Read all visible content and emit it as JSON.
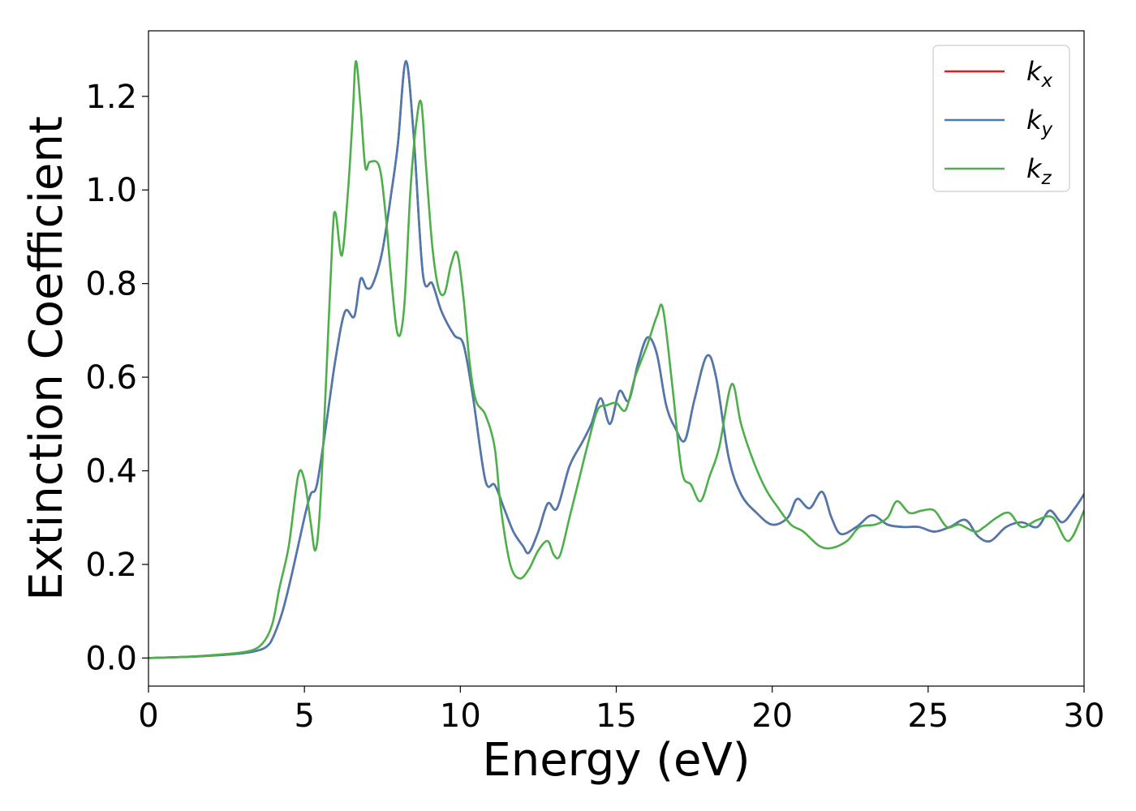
{
  "chart_data": {
    "type": "line",
    "title": "",
    "xlabel": "Energy (eV)",
    "ylabel": "Extinction Coefficient",
    "xlim": [
      0,
      30
    ],
    "ylim": [
      -0.06,
      1.34
    ],
    "xticks": [
      0,
      5,
      10,
      15,
      20,
      25,
      30
    ],
    "yticks": [
      0.0,
      0.2,
      0.4,
      0.6,
      0.8,
      1.0,
      1.2
    ],
    "grid": false,
    "legend_position": "top-right",
    "series": [
      {
        "name": "k",
        "subscript": "x",
        "color": "#e41a1c",
        "points": [
          [
            0,
            0
          ],
          [
            1,
            0.002
          ],
          [
            2,
            0.005
          ],
          [
            3,
            0.01
          ],
          [
            3.5,
            0.016
          ],
          [
            3.8,
            0.025
          ],
          [
            4.0,
            0.045
          ],
          [
            4.3,
            0.1
          ],
          [
            4.6,
            0.18
          ],
          [
            5.0,
            0.3
          ],
          [
            5.2,
            0.35
          ],
          [
            5.4,
            0.37
          ],
          [
            5.7,
            0.5
          ],
          [
            6.0,
            0.64
          ],
          [
            6.3,
            0.74
          ],
          [
            6.6,
            0.73
          ],
          [
            6.8,
            0.81
          ],
          [
            7.0,
            0.79
          ],
          [
            7.2,
            0.8
          ],
          [
            7.5,
            0.87
          ],
          [
            7.8,
            1.0
          ],
          [
            8.0,
            1.1
          ],
          [
            8.25,
            1.275
          ],
          [
            8.5,
            1.12
          ],
          [
            8.8,
            0.82
          ],
          [
            9.1,
            0.8
          ],
          [
            9.4,
            0.74
          ],
          [
            9.8,
            0.69
          ],
          [
            10.1,
            0.67
          ],
          [
            10.4,
            0.56
          ],
          [
            10.8,
            0.38
          ],
          [
            11.1,
            0.37
          ],
          [
            11.4,
            0.32
          ],
          [
            11.7,
            0.27
          ],
          [
            12.0,
            0.24
          ],
          [
            12.2,
            0.225
          ],
          [
            12.5,
            0.27
          ],
          [
            12.8,
            0.33
          ],
          [
            13.1,
            0.32
          ],
          [
            13.5,
            0.41
          ],
          [
            13.9,
            0.46
          ],
          [
            14.2,
            0.5
          ],
          [
            14.5,
            0.555
          ],
          [
            14.8,
            0.5
          ],
          [
            15.1,
            0.57
          ],
          [
            15.4,
            0.55
          ],
          [
            15.7,
            0.63
          ],
          [
            16.0,
            0.685
          ],
          [
            16.3,
            0.65
          ],
          [
            16.6,
            0.54
          ],
          [
            16.9,
            0.49
          ],
          [
            17.2,
            0.465
          ],
          [
            17.5,
            0.55
          ],
          [
            17.9,
            0.645
          ],
          [
            18.2,
            0.6
          ],
          [
            18.6,
            0.43
          ],
          [
            19.0,
            0.35
          ],
          [
            19.5,
            0.31
          ],
          [
            20.0,
            0.285
          ],
          [
            20.5,
            0.3
          ],
          [
            20.8,
            0.34
          ],
          [
            21.2,
            0.32
          ],
          [
            21.6,
            0.355
          ],
          [
            21.9,
            0.3
          ],
          [
            22.2,
            0.265
          ],
          [
            22.7,
            0.28
          ],
          [
            23.2,
            0.305
          ],
          [
            23.7,
            0.285
          ],
          [
            24.2,
            0.28
          ],
          [
            24.7,
            0.28
          ],
          [
            25.2,
            0.27
          ],
          [
            25.7,
            0.28
          ],
          [
            26.2,
            0.295
          ],
          [
            26.6,
            0.26
          ],
          [
            27.0,
            0.25
          ],
          [
            27.5,
            0.28
          ],
          [
            28.0,
            0.29
          ],
          [
            28.5,
            0.28
          ],
          [
            28.9,
            0.315
          ],
          [
            29.3,
            0.29
          ],
          [
            29.7,
            0.32
          ],
          [
            30.0,
            0.35
          ]
        ]
      },
      {
        "name": "k",
        "subscript": "y",
        "color": "#4a7ab0",
        "points": [
          [
            0,
            0
          ],
          [
            1,
            0.002
          ],
          [
            2,
            0.005
          ],
          [
            3,
            0.01
          ],
          [
            3.5,
            0.016
          ],
          [
            3.8,
            0.025
          ],
          [
            4.0,
            0.045
          ],
          [
            4.3,
            0.1
          ],
          [
            4.6,
            0.18
          ],
          [
            5.0,
            0.3
          ],
          [
            5.2,
            0.35
          ],
          [
            5.4,
            0.37
          ],
          [
            5.7,
            0.5
          ],
          [
            6.0,
            0.64
          ],
          [
            6.3,
            0.74
          ],
          [
            6.6,
            0.73
          ],
          [
            6.8,
            0.81
          ],
          [
            7.0,
            0.79
          ],
          [
            7.2,
            0.8
          ],
          [
            7.5,
            0.87
          ],
          [
            7.8,
            1.0
          ],
          [
            8.0,
            1.1
          ],
          [
            8.25,
            1.275
          ],
          [
            8.5,
            1.12
          ],
          [
            8.8,
            0.82
          ],
          [
            9.1,
            0.8
          ],
          [
            9.4,
            0.74
          ],
          [
            9.8,
            0.69
          ],
          [
            10.1,
            0.67
          ],
          [
            10.4,
            0.56
          ],
          [
            10.8,
            0.38
          ],
          [
            11.1,
            0.37
          ],
          [
            11.4,
            0.32
          ],
          [
            11.7,
            0.27
          ],
          [
            12.0,
            0.24
          ],
          [
            12.2,
            0.225
          ],
          [
            12.5,
            0.27
          ],
          [
            12.8,
            0.33
          ],
          [
            13.1,
            0.32
          ],
          [
            13.5,
            0.41
          ],
          [
            13.9,
            0.46
          ],
          [
            14.2,
            0.5
          ],
          [
            14.5,
            0.555
          ],
          [
            14.8,
            0.5
          ],
          [
            15.1,
            0.57
          ],
          [
            15.4,
            0.55
          ],
          [
            15.7,
            0.63
          ],
          [
            16.0,
            0.685
          ],
          [
            16.3,
            0.65
          ],
          [
            16.6,
            0.54
          ],
          [
            16.9,
            0.49
          ],
          [
            17.2,
            0.465
          ],
          [
            17.5,
            0.55
          ],
          [
            17.9,
            0.645
          ],
          [
            18.2,
            0.6
          ],
          [
            18.6,
            0.43
          ],
          [
            19.0,
            0.35
          ],
          [
            19.5,
            0.31
          ],
          [
            20.0,
            0.285
          ],
          [
            20.5,
            0.3
          ],
          [
            20.8,
            0.34
          ],
          [
            21.2,
            0.32
          ],
          [
            21.6,
            0.355
          ],
          [
            21.9,
            0.3
          ],
          [
            22.2,
            0.265
          ],
          [
            22.7,
            0.28
          ],
          [
            23.2,
            0.305
          ],
          [
            23.7,
            0.285
          ],
          [
            24.2,
            0.28
          ],
          [
            24.7,
            0.28
          ],
          [
            25.2,
            0.27
          ],
          [
            25.7,
            0.28
          ],
          [
            26.2,
            0.295
          ],
          [
            26.6,
            0.26
          ],
          [
            27.0,
            0.25
          ],
          [
            27.5,
            0.28
          ],
          [
            28.0,
            0.29
          ],
          [
            28.5,
            0.28
          ],
          [
            28.9,
            0.315
          ],
          [
            29.3,
            0.29
          ],
          [
            29.7,
            0.32
          ],
          [
            30.0,
            0.35
          ]
        ]
      },
      {
        "name": "k",
        "subscript": "z",
        "color": "#4daf4a",
        "points": [
          [
            0,
            0
          ],
          [
            1,
            0.002
          ],
          [
            2,
            0.006
          ],
          [
            3,
            0.012
          ],
          [
            3.5,
            0.022
          ],
          [
            3.8,
            0.045
          ],
          [
            4.0,
            0.08
          ],
          [
            4.2,
            0.15
          ],
          [
            4.5,
            0.24
          ],
          [
            4.8,
            0.39
          ],
          [
            5.0,
            0.38
          ],
          [
            5.2,
            0.29
          ],
          [
            5.35,
            0.23
          ],
          [
            5.5,
            0.32
          ],
          [
            5.7,
            0.6
          ],
          [
            5.9,
            0.9
          ],
          [
            6.0,
            0.95
          ],
          [
            6.2,
            0.86
          ],
          [
            6.4,
            1.0
          ],
          [
            6.55,
            1.16
          ],
          [
            6.65,
            1.275
          ],
          [
            6.8,
            1.18
          ],
          [
            6.95,
            1.05
          ],
          [
            7.1,
            1.06
          ],
          [
            7.4,
            1.05
          ],
          [
            7.6,
            0.95
          ],
          [
            7.8,
            0.8
          ],
          [
            8.0,
            0.69
          ],
          [
            8.2,
            0.75
          ],
          [
            8.4,
            1.0
          ],
          [
            8.6,
            1.15
          ],
          [
            8.75,
            1.185
          ],
          [
            8.9,
            1.05
          ],
          [
            9.1,
            0.88
          ],
          [
            9.3,
            0.79
          ],
          [
            9.5,
            0.78
          ],
          [
            9.7,
            0.84
          ],
          [
            9.9,
            0.865
          ],
          [
            10.1,
            0.77
          ],
          [
            10.3,
            0.63
          ],
          [
            10.5,
            0.55
          ],
          [
            10.8,
            0.52
          ],
          [
            11.1,
            0.45
          ],
          [
            11.3,
            0.32
          ],
          [
            11.6,
            0.2
          ],
          [
            11.9,
            0.17
          ],
          [
            12.2,
            0.19
          ],
          [
            12.5,
            0.23
          ],
          [
            12.8,
            0.25
          ],
          [
            13.0,
            0.22
          ],
          [
            13.2,
            0.22
          ],
          [
            13.5,
            0.3
          ],
          [
            13.8,
            0.38
          ],
          [
            14.1,
            0.46
          ],
          [
            14.4,
            0.53
          ],
          [
            14.7,
            0.54
          ],
          [
            15.0,
            0.545
          ],
          [
            15.3,
            0.53
          ],
          [
            15.6,
            0.6
          ],
          [
            16.0,
            0.67
          ],
          [
            16.3,
            0.73
          ],
          [
            16.5,
            0.745
          ],
          [
            16.8,
            0.58
          ],
          [
            17.1,
            0.4
          ],
          [
            17.4,
            0.37
          ],
          [
            17.7,
            0.335
          ],
          [
            18.0,
            0.39
          ],
          [
            18.3,
            0.45
          ],
          [
            18.7,
            0.585
          ],
          [
            19.0,
            0.5
          ],
          [
            19.4,
            0.42
          ],
          [
            19.8,
            0.36
          ],
          [
            20.2,
            0.32
          ],
          [
            20.6,
            0.285
          ],
          [
            21.0,
            0.27
          ],
          [
            21.5,
            0.24
          ],
          [
            21.9,
            0.235
          ],
          [
            22.4,
            0.25
          ],
          [
            22.8,
            0.28
          ],
          [
            23.3,
            0.285
          ],
          [
            23.7,
            0.3
          ],
          [
            24.0,
            0.335
          ],
          [
            24.4,
            0.31
          ],
          [
            24.8,
            0.315
          ],
          [
            25.2,
            0.315
          ],
          [
            25.6,
            0.28
          ],
          [
            26.0,
            0.285
          ],
          [
            26.5,
            0.27
          ],
          [
            26.8,
            0.28
          ],
          [
            27.2,
            0.3
          ],
          [
            27.6,
            0.31
          ],
          [
            28.0,
            0.28
          ],
          [
            28.5,
            0.295
          ],
          [
            29.0,
            0.3
          ],
          [
            29.5,
            0.25
          ],
          [
            30.0,
            0.315
          ]
        ]
      }
    ]
  }
}
